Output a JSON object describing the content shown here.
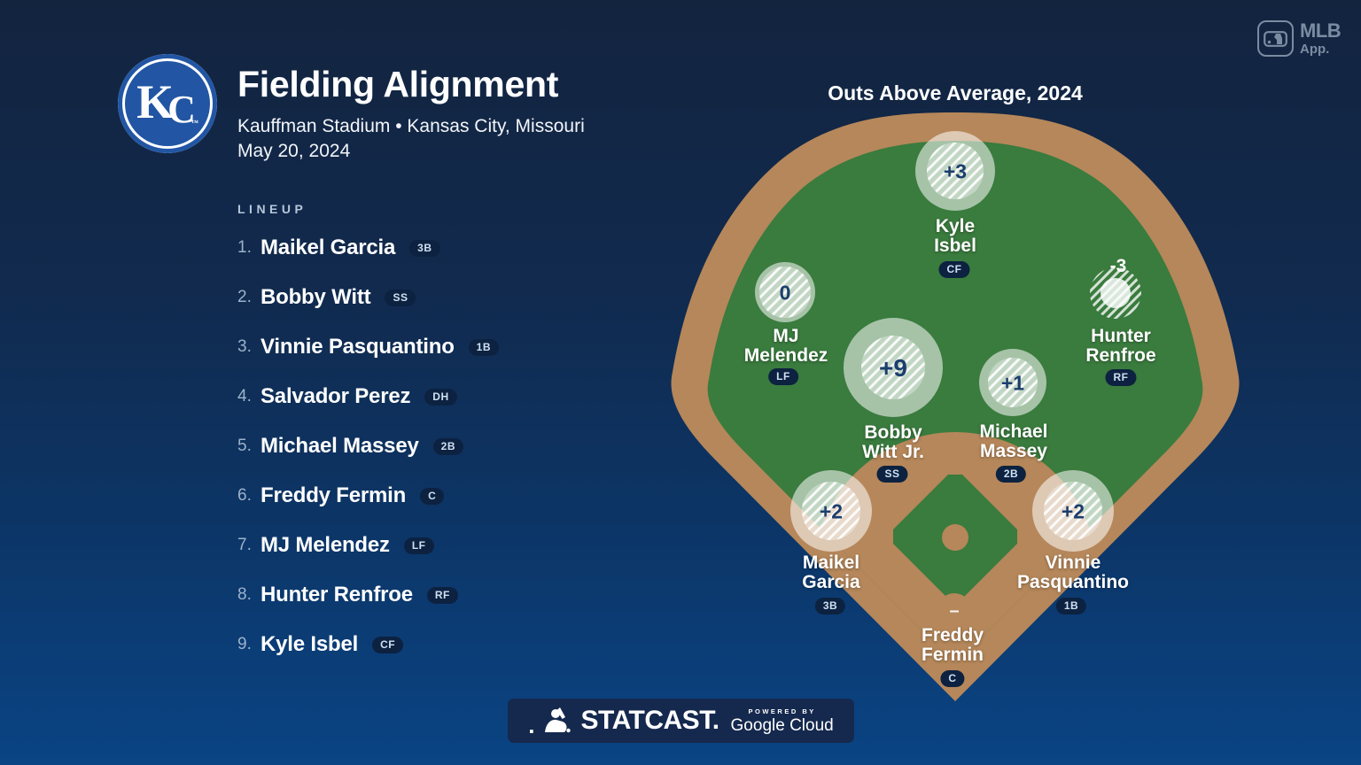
{
  "header": {
    "team_logo_letters": "KC",
    "team_logo_tm": "™",
    "title": "Fielding Alignment",
    "venue_line": "Kauffman Stadium • Kansas City, Missouri",
    "date_line": "May 20, 2024"
  },
  "mlb_app_badge": {
    "line1": "MLB",
    "line2": "App."
  },
  "lineup": {
    "label": "LINEUP",
    "players": [
      {
        "order": "1.",
        "name": "Maikel Garcia",
        "position": "3B"
      },
      {
        "order": "2.",
        "name": "Bobby Witt",
        "position": "SS"
      },
      {
        "order": "3.",
        "name": "Vinnie Pasquantino",
        "position": "1B"
      },
      {
        "order": "4.",
        "name": "Salvador Perez",
        "position": "DH"
      },
      {
        "order": "5.",
        "name": "Michael Massey",
        "position": "2B"
      },
      {
        "order": "6.",
        "name": "Freddy Fermin",
        "position": "C"
      },
      {
        "order": "7.",
        "name": "MJ Melendez",
        "position": "LF"
      },
      {
        "order": "8.",
        "name": "Hunter Renfroe",
        "position": "RF"
      },
      {
        "order": "9.",
        "name": "Kyle Isbel",
        "position": "CF"
      }
    ]
  },
  "field": {
    "title": "Outs Above Average, 2024",
    "colors": {
      "grass": "#3a7b3e",
      "dirt": "#b5875a",
      "navy_badge": "#0c2240",
      "oaa_number": "#1c3e6e",
      "name_text": "#ffffff"
    },
    "players": [
      {
        "position": "CF",
        "name_lines": [
          "Kyle",
          "Isbel"
        ],
        "oaa": "+3"
      },
      {
        "position": "LF",
        "name_lines": [
          "MJ",
          "Melendez"
        ],
        "oaa": "0"
      },
      {
        "position": "RF",
        "name_lines": [
          "Hunter",
          "Renfroe"
        ],
        "oaa": "-3"
      },
      {
        "position": "SS",
        "name_lines": [
          "Bobby",
          "Witt Jr."
        ],
        "oaa": "+9"
      },
      {
        "position": "2B",
        "name_lines": [
          "Michael",
          "Massey"
        ],
        "oaa": "+1"
      },
      {
        "position": "3B",
        "name_lines": [
          "Maikel",
          "Garcia"
        ],
        "oaa": "+2"
      },
      {
        "position": "1B",
        "name_lines": [
          "Vinnie",
          "Pasquantino"
        ],
        "oaa": "+2"
      },
      {
        "position": "C",
        "name_lines": [
          "Freddy",
          "Fermin"
        ],
        "oaa": "–"
      }
    ]
  },
  "footer": {
    "prefix_dot": ".",
    "statcast_wordmark": "STATCAST.",
    "powered_by": "POWERED BY",
    "google_cloud": "Google Cloud"
  }
}
